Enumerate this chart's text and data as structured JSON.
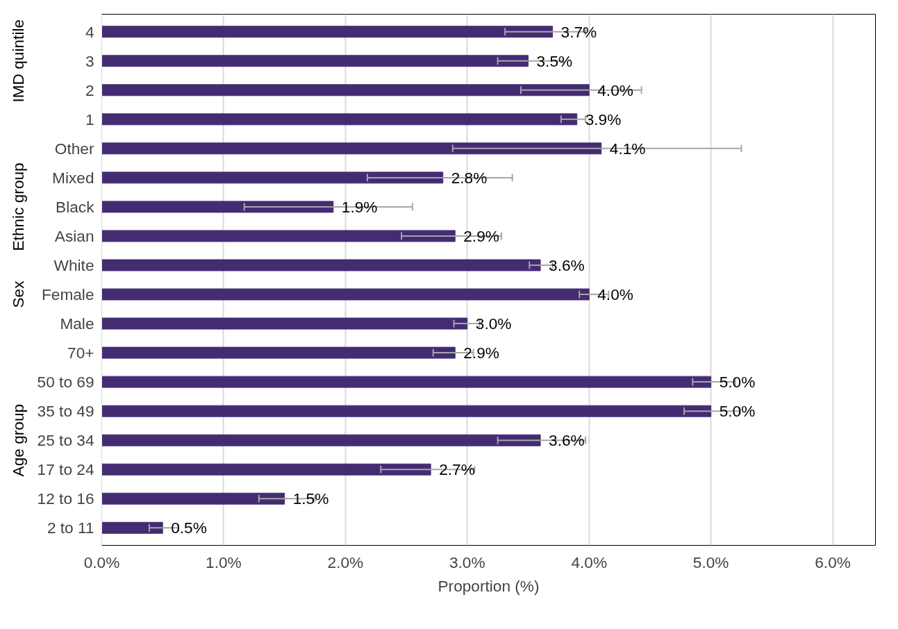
{
  "chart_data": {
    "type": "bar",
    "orientation": "horizontal",
    "xlabel": "Proportion (%)",
    "categories": [
      "4",
      "3",
      "2",
      "1",
      "Other",
      "Mixed",
      "Black",
      "Asian",
      "White",
      "Female",
      "Male",
      "70+",
      "50 to 69",
      "35 to 49",
      "25 to 34",
      "17 to 24",
      "12 to 16",
      "2 to 11"
    ],
    "values": [
      3.7,
      3.5,
      4.0,
      3.9,
      4.1,
      2.8,
      1.9,
      2.9,
      3.6,
      4.0,
      3.0,
      2.9,
      5.0,
      5.0,
      3.6,
      2.7,
      1.5,
      0.5
    ],
    "errors": [
      [
        3.31,
        3.97
      ],
      [
        3.25,
        3.79
      ],
      [
        3.44,
        4.43
      ],
      [
        3.77,
        3.97
      ],
      [
        2.88,
        5.25
      ],
      [
        2.18,
        3.37
      ],
      [
        1.17,
        2.55
      ],
      [
        2.46,
        3.28
      ],
      [
        3.51,
        3.7
      ],
      [
        3.92,
        4.16
      ],
      [
        2.89,
        3.1
      ],
      [
        2.72,
        3.05
      ],
      [
        4.85,
        5.2
      ],
      [
        4.78,
        5.24
      ],
      [
        3.25,
        3.97
      ],
      [
        2.29,
        3.06
      ],
      [
        1.29,
        1.75
      ],
      [
        0.39,
        0.63
      ]
    ],
    "color": "#442c73",
    "value_labels": [
      "3.7%",
      "3.5%",
      "4.0%",
      "3.9%",
      "4.1%",
      "2.8%",
      "1.9%",
      "2.9%",
      "3.6%",
      "4.0%",
      "3.0%",
      "2.9%",
      "5.0%",
      "5.0%",
      "3.6%",
      "2.7%",
      "1.5%",
      "0.5%"
    ],
    "xlim": [
      0,
      6.35
    ],
    "xticks": [
      {
        "value": 0,
        "label": "0.0%"
      },
      {
        "value": 1,
        "label": "1.0%"
      },
      {
        "value": 2,
        "label": "2.0%"
      },
      {
        "value": 3,
        "label": "3.0%"
      },
      {
        "value": 4,
        "label": "4.0%"
      },
      {
        "value": 5,
        "label": "5.0%"
      },
      {
        "value": 6,
        "label": "6.0%"
      }
    ],
    "grid": "x",
    "y2_categories": [
      null,
      "IMD quintile",
      null,
      null,
      null,
      null,
      "Ethnic group",
      null,
      null,
      "Sex",
      null,
      null,
      null,
      null,
      "Age group",
      null,
      null,
      null
    ]
  }
}
